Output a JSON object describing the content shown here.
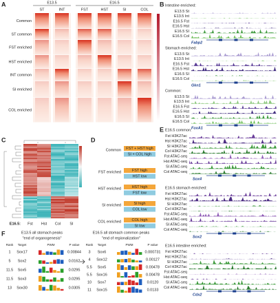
{
  "A": {
    "label": "A",
    "groups": [
      {
        "name": "E13.5",
        "cols": [
          "ST",
          "INT"
        ]
      },
      {
        "name": "E16.5",
        "cols": [
          "FST",
          "HST",
          "SI",
          "COL"
        ]
      }
    ],
    "rows": [
      "Common",
      "ST common",
      "FST enriched",
      "HST enriched",
      "INT common",
      "SI enriched",
      "COL enriched"
    ]
  },
  "B": {
    "label": "B",
    "tracks": [
      "E13.5 St",
      "E13.5 Int",
      "E16.5 Fst",
      "E16.5 Hst",
      "E16.5 SI",
      "E16.5 Col"
    ],
    "sections": [
      {
        "title": "Intestine enriched:",
        "gene": "Fabp2"
      },
      {
        "title": "Stomach enriched:",
        "gene": "Gkn1"
      },
      {
        "title": "Common:",
        "gene": "FoxA1"
      }
    ]
  },
  "C": {
    "label": "C",
    "stage": "E16.5:",
    "columns": [
      "Fst",
      "Hst",
      "Col",
      "SI"
    ]
  },
  "D": {
    "label": "D",
    "groups": [
      {
        "name": "Common",
        "bars": [
          "FST + HST high",
          "SI + COL high"
        ]
      },
      {
        "name": "FST enriched",
        "bars": [
          "FST high",
          "HST low"
        ]
      },
      {
        "name": "HST enriched",
        "bars": [
          "HST high",
          "FST low"
        ]
      },
      {
        "name": "SI enriched",
        "bars": [
          "SI high",
          "COL low"
        ]
      },
      {
        "name": "COL enriched",
        "bars": [
          "COL high",
          "SI low"
        ]
      }
    ]
  },
  "E": {
    "label": "E",
    "tracks": [
      "Fst H3K27ac",
      "Hst H3K27ac",
      "SI H3K27ac",
      "Col H3K27ac",
      "Fst ATAC-seq",
      "Hst ATAC-seq",
      "SI ATAC-seq",
      "Col ATAC-seq"
    ],
    "sections": [
      {
        "title": "E16.5 common:",
        "gene": "Sox4"
      },
      {
        "title": "E16.5 stomach enriched:",
        "gene": "Sox2"
      },
      {
        "title": "E16.5 intestine enriched:",
        "gene": "Cdx2"
      }
    ]
  },
  "F": {
    "label": "F",
    "columns": [
      "Rank",
      "Target",
      "PWM",
      "P value"
    ],
    "tables": [
      {
        "title": "E13.5 all stomach peaks",
        "subtitle": "\"end of organogenesis\"",
        "rows": [
          {
            "rank": "1",
            "target": "Sox17",
            "p": "0.00844"
          },
          {
            "rank": "5",
            "target": "Sox2",
            "p": "0.0162"
          },
          {
            "rank": "11.5",
            "target": "Sox5",
            "p": "0.0295"
          },
          {
            "rank": "11.5",
            "target": "Sox3",
            "p": "0.0295"
          },
          {
            "rank": "13",
            "target": "Sox30",
            "p": "0.0305"
          }
        ]
      },
      {
        "title": "E16.5 all stomach common peaks",
        "subtitle": "\"end of regionalization\"",
        "rows": [
          {
            "rank": "3",
            "target": "Sox6",
            "p": "0.000731"
          },
          {
            "rank": "4",
            "target": "Sox12",
            "p": "0.00127"
          },
          {
            "rank": "5.5",
            "target": "Sox5",
            "p": "0.00478"
          },
          {
            "rank": "5.5",
            "target": "Sox16",
            "p": "0.00478"
          },
          {
            "rank": "10",
            "target": "Sox7",
            "p": "0.0120"
          },
          {
            "rank": "11",
            "target": "Sox15",
            "p": "0.0133"
          }
        ]
      }
    ]
  }
}
